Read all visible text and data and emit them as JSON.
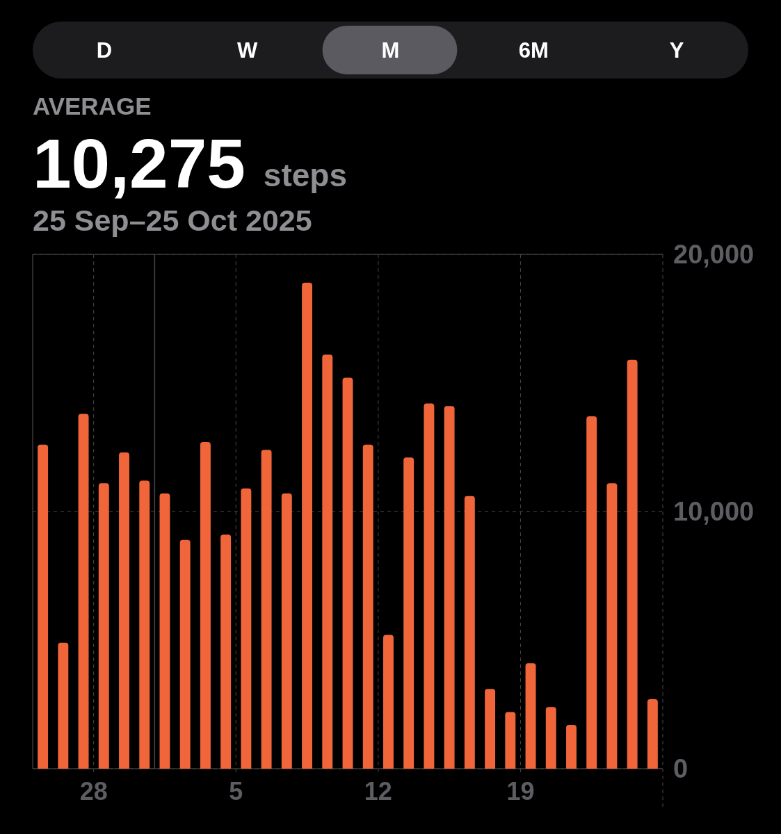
{
  "chart_data": [
    {
      "type": "other",
      "categories": [
        "D",
        "W",
        "M",
        "6M",
        "Y"
      ],
      "colors": [
        "#1c1c1e",
        "#1c1c1e",
        "#5b5a60",
        "#1c1c1e",
        "#1c1c1e"
      ]
    },
    {
      "type": "bar",
      "title": "AVERAGE",
      "subtitle": "25 Sep–25 Oct 2025",
      "annotations": [
        "10,275",
        "steps"
      ],
      "x": [
        "2025-09-25T12:00",
        "2025-09-26T12:00",
        "2025-09-27T12:00",
        "2025-09-28T12:00",
        "2025-09-29T12:00",
        "2025-09-30T12:00",
        "2025-10-01T12:00",
        "2025-10-02T12:00",
        "2025-10-03T12:00",
        "2025-10-04T12:00",
        "2025-10-05T12:00",
        "2025-10-06T12:00",
        "2025-10-07T12:00",
        "2025-10-08T12:00",
        "2025-10-09T12:00",
        "2025-10-10T12:00",
        "2025-10-11T12:00",
        "2025-10-12T12:00",
        "2025-10-13T12:00",
        "2025-10-14T12:00",
        "2025-10-15T12:00",
        "2025-10-16T12:00",
        "2025-10-17T12:00",
        "2025-10-18T12:00",
        "2025-10-19T12:00",
        "2025-10-20T12:00",
        "2025-10-21T12:00",
        "2025-10-22T12:00",
        "2025-10-23T12:00",
        "2025-10-24T12:00",
        "2025-10-25T12:00"
      ],
      "values": [
        12600,
        4900,
        13800,
        11100,
        12300,
        11200,
        10700,
        8900,
        12700,
        9100,
        10900,
        12400,
        10700,
        18900,
        16100,
        15200,
        12600,
        5200,
        12100,
        14200,
        14100,
        10600,
        3100,
        2200,
        4100,
        2400,
        1700,
        13700,
        11100,
        15900,
        2700
      ],
      "color": "#f0663a",
      "xlim": [
        "2025-09-25",
        "2025-10-26"
      ],
      "xticks": [
        {
          "value": "2025-09-28",
          "label": "28"
        },
        {
          "value": "2025-10-05",
          "label": "5"
        },
        {
          "value": "2025-10-12",
          "label": "12"
        },
        {
          "value": "2025-10-19",
          "label": "19"
        }
      ],
      "ylim": [
        0,
        20000
      ],
      "yticks": [
        0,
        {
          "value": 10000,
          "label": "10,000"
        },
        {
          "value": 20000,
          "label": "20,000"
        }
      ],
      "grid": true,
      "ref_lines": [
        {
          "axis": "x",
          "value": "2025-10-01",
          "color": "#48484a",
          "line_style": "solid"
        }
      ]
    }
  ]
}
